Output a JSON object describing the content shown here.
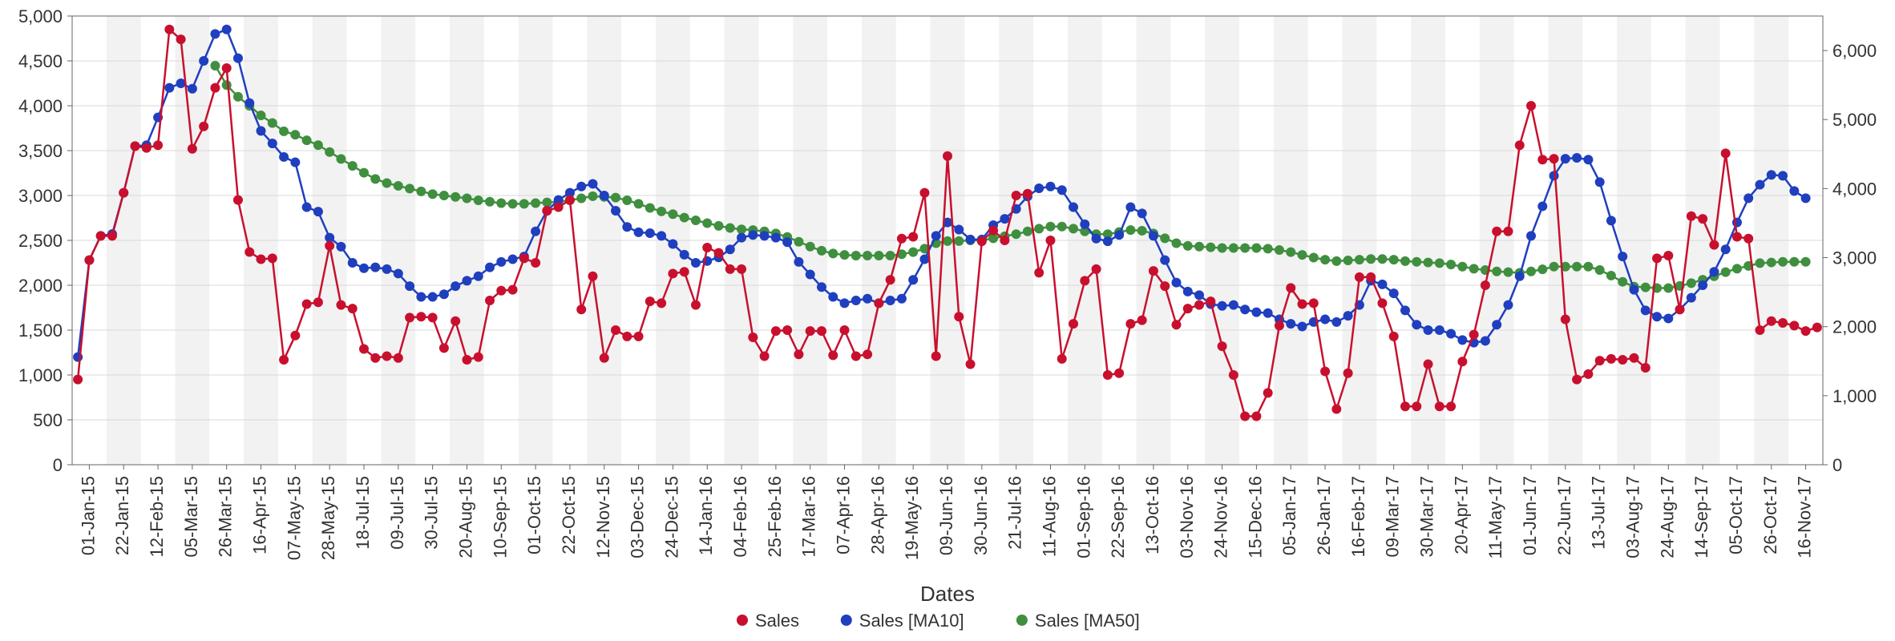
{
  "chart": {
    "type": "line",
    "background_color": "#ffffff",
    "alt_band_color": "#f2f2f2",
    "grid_color": "#d8d8d8",
    "axis_color": "#666666",
    "text_color": "#333333",
    "font_family": "Arial, Helvetica, sans-serif",
    "tick_fontsize": 22,
    "axis_label_fontsize": 26,
    "legend_fontsize": 22,
    "marker_radius": 6,
    "line_width": 2.5,
    "plot_border": true,
    "x_axis": {
      "label": "Dates",
      "categories": [
        "01-Jan-15",
        "22-Jan-15",
        "12-Feb-15",
        "05-Mar-15",
        "26-Mar-15",
        "16-Apr-15",
        "07-May-15",
        "28-May-15",
        "18-Jul-15",
        "09-Jul-15",
        "30-Jul-15",
        "20-Aug-15",
        "10-Sep-15",
        "01-Oct-15",
        "22-Oct-15",
        "12-Nov-15",
        "03-Dec-15",
        "24-Dec-15",
        "14-Jan-16",
        "04-Feb-16",
        "25-Feb-16",
        "17-Mar-16",
        "07-Apr-16",
        "28-Apr-16",
        "19-May-16",
        "09-Jun-16",
        "30-Jun-16",
        "21-Jul-16",
        "11-Aug-16",
        "01-Sep-16",
        "22-Sep-16",
        "13-Oct-16",
        "03-Nov-16",
        "24-Nov-16",
        "15-Dec-16",
        "05-Jan-17",
        "26-Jan-17",
        "16-Feb-17",
        "09-Mar-17",
        "30-Mar-17",
        "20-Apr-17",
        "11-May-17",
        "01-Jun-17",
        "22-Jun-17",
        "13-Jul-17",
        "03-Aug-17",
        "24-Aug-17",
        "14-Sep-17",
        "05-Oct-17",
        "26-Oct-17",
        "16-Nov-17"
      ],
      "points_per_category": 3,
      "rotate_deg": -90
    },
    "y_left": {
      "min": 0,
      "max": 5000,
      "tick_step": 500,
      "ticks": [
        "0",
        "500",
        "1,000",
        "1,500",
        "2,000",
        "2,500",
        "3,000",
        "3,500",
        "4,000",
        "4,500",
        "5,000"
      ]
    },
    "y_right": {
      "min": 0,
      "max": 6500,
      "tick_step": 1000,
      "ticks": [
        "0",
        "1,000",
        "2,000",
        "3,000",
        "4,000",
        "5,000",
        "6,000"
      ]
    },
    "series": [
      {
        "name": "Sales",
        "color": "#c8102e",
        "axis": "left",
        "marker": "circle",
        "values": [
          950,
          2280,
          2550,
          2550,
          3030,
          3550,
          3530,
          3560,
          4850,
          4740,
          3520,
          3770,
          4200,
          4420,
          2950,
          2370,
          2290,
          2300,
          1170,
          1440,
          1790,
          1810,
          2440,
          1780,
          1740,
          1290,
          1190,
          1210,
          1190,
          1640,
          1650,
          1640,
          1300,
          1600,
          1170,
          1200,
          1830,
          1940,
          1950,
          2300,
          2250,
          2830,
          2870,
          2950,
          1730,
          2100,
          1190,
          1500,
          1430,
          1430,
          1820,
          1800,
          2130,
          2150,
          1780,
          2420,
          2360,
          2180,
          2180,
          1420,
          1210,
          1490,
          1500,
          1230,
          1490,
          1490,
          1220,
          1500,
          1210,
          1230,
          1800,
          2060,
          2520,
          2540,
          3030,
          1210,
          3440,
          1650,
          1120,
          2490,
          2610,
          2500,
          3000,
          3020,
          2140,
          2500,
          1180,
          1570,
          2050,
          2180,
          1000,
          1020,
          1570,
          1610,
          2160,
          1990,
          1560,
          1740,
          1780,
          1820,
          1320,
          1000,
          540,
          540,
          800,
          1550,
          1970,
          1790,
          1800,
          1040,
          620,
          1020,
          2090,
          2090,
          1800,
          1430,
          650,
          650,
          1120,
          650,
          650,
          1150,
          1450,
          2000,
          2600,
          2600,
          3560,
          4000,
          3400,
          3410,
          1620,
          950,
          1010,
          1160,
          1180,
          1170,
          1190,
          1080,
          2300,
          2330,
          1730,
          2770,
          2740,
          2450,
          3470,
          2540,
          2520,
          1500,
          1600,
          1580,
          1550,
          1490,
          1530
        ]
      },
      {
        "name": "Sales [MA10]",
        "color": "#1f3fbf",
        "axis": "left",
        "marker": "circle",
        "values": [
          1200,
          2280,
          2550,
          2570,
          3030,
          3550,
          3560,
          3870,
          4200,
          4250,
          4190,
          4500,
          4800,
          4850,
          4530,
          4030,
          3720,
          3580,
          3430,
          3370,
          2870,
          2820,
          2530,
          2430,
          2250,
          2190,
          2200,
          2180,
          2130,
          1990,
          1870,
          1870,
          1900,
          1990,
          2050,
          2100,
          2200,
          2260,
          2290,
          2320,
          2600,
          2830,
          2950,
          3030,
          3100,
          3130,
          3000,
          2830,
          2650,
          2590,
          2580,
          2550,
          2460,
          2340,
          2250,
          2270,
          2310,
          2400,
          2530,
          2560,
          2550,
          2530,
          2480,
          2260,
          2120,
          1980,
          1870,
          1800,
          1830,
          1850,
          1800,
          1830,
          1850,
          2060,
          2290,
          2550,
          2700,
          2620,
          2510,
          2510,
          2670,
          2740,
          2850,
          2990,
          3080,
          3100,
          3060,
          2870,
          2680,
          2520,
          2490,
          2560,
          2870,
          2800,
          2550,
          2280,
          2030,
          1930,
          1890,
          1790,
          1770,
          1780,
          1730,
          1700,
          1690,
          1620,
          1570,
          1540,
          1590,
          1620,
          1590,
          1660,
          1780,
          2050,
          2010,
          1910,
          1720,
          1560,
          1500,
          1500,
          1460,
          1390,
          1360,
          1380,
          1560,
          1780,
          2100,
          2550,
          2880,
          3220,
          3410,
          3420,
          3400,
          3150,
          2720,
          2320,
          1950,
          1720,
          1650,
          1630,
          1730,
          1860,
          2000,
          2150,
          2400,
          2700,
          2970,
          3120,
          3230,
          3220,
          3050,
          2970
        ]
      },
      {
        "name": "Sales [MA50]",
        "color": "#3f8f3f",
        "axis": "right",
        "marker": "circle",
        "values": [
          null,
          null,
          null,
          null,
          null,
          null,
          null,
          null,
          null,
          null,
          null,
          null,
          5780,
          5500,
          5330,
          5200,
          5060,
          4950,
          4830,
          4780,
          4700,
          4630,
          4530,
          4430,
          4330,
          4230,
          4140,
          4080,
          4040,
          4000,
          3960,
          3920,
          3900,
          3880,
          3860,
          3830,
          3810,
          3790,
          3780,
          3780,
          3790,
          3800,
          3810,
          3830,
          3860,
          3890,
          3880,
          3870,
          3830,
          3780,
          3720,
          3670,
          3630,
          3580,
          3540,
          3500,
          3460,
          3430,
          3410,
          3400,
          3380,
          3350,
          3300,
          3230,
          3160,
          3100,
          3060,
          3040,
          3030,
          3030,
          3030,
          3030,
          3050,
          3080,
          3130,
          3210,
          3240,
          3240,
          3250,
          3250,
          3280,
          3310,
          3340,
          3380,
          3420,
          3450,
          3450,
          3420,
          3380,
          3340,
          3340,
          3370,
          3400,
          3390,
          3350,
          3280,
          3210,
          3170,
          3160,
          3150,
          3140,
          3140,
          3140,
          3140,
          3130,
          3110,
          3080,
          3040,
          3000,
          2970,
          2950,
          2960,
          2970,
          2980,
          2980,
          2970,
          2950,
          2940,
          2930,
          2920,
          2900,
          2870,
          2840,
          2820,
          2800,
          2790,
          2780,
          2800,
          2830,
          2870,
          2870,
          2870,
          2870,
          2820,
          2740,
          2650,
          2580,
          2570,
          2560,
          2560,
          2590,
          2630,
          2680,
          2730,
          2790,
          2840,
          2880,
          2920,
          2930,
          2940,
          2940,
          2940
        ]
      }
    ],
    "legend": {
      "position": "bottom-center",
      "marker": "circle"
    }
  }
}
